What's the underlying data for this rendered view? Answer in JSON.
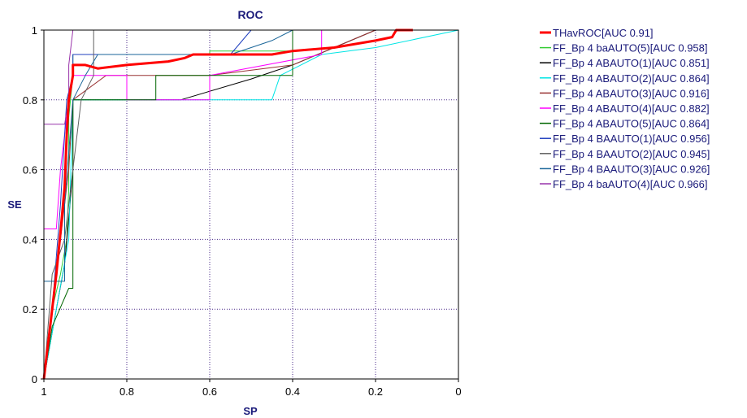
{
  "chart_data": {
    "type": "line",
    "title": "ROC",
    "xlabel": "SP",
    "ylabel": "SE",
    "xlim": [
      1,
      0
    ],
    "ylim": [
      0,
      1
    ],
    "x_reversed": true,
    "xticks": [
      "1",
      "0.8",
      "0.6",
      "0.4",
      "0.2",
      "0"
    ],
    "yticks": [
      "0",
      "0.2",
      "0.4",
      "0.6",
      "0.8",
      "1"
    ],
    "grid": true,
    "legend_position": "right",
    "series": [
      {
        "name": "THavROC[AUC 0.91]",
        "color": "#ff0000",
        "width": 3,
        "points": [
          [
            1,
            0
          ],
          [
            0.99,
            0.1
          ],
          [
            0.98,
            0.2
          ],
          [
            0.97,
            0.3
          ],
          [
            0.96,
            0.42
          ],
          [
            0.95,
            0.55
          ],
          [
            0.945,
            0.7
          ],
          [
            0.94,
            0.8
          ],
          [
            0.93,
            0.87
          ],
          [
            0.93,
            0.9
          ],
          [
            0.9,
            0.9
          ],
          [
            0.87,
            0.89
          ],
          [
            0.8,
            0.9
          ],
          [
            0.7,
            0.91
          ],
          [
            0.66,
            0.92
          ],
          [
            0.64,
            0.93
          ],
          [
            0.45,
            0.93
          ],
          [
            0.4,
            0.94
          ],
          [
            0.3,
            0.95
          ],
          [
            0.2,
            0.97
          ],
          [
            0.16,
            0.98
          ],
          [
            0.15,
            1
          ],
          [
            0.11,
            1
          ]
        ]
      },
      {
        "name": "FF_Bp 4 baAUTO(5)[AUC 0.958]",
        "color": "#33cc33",
        "width": 1,
        "points": [
          [
            1,
            0
          ],
          [
            0.98,
            0.2
          ],
          [
            0.96,
            0.3
          ],
          [
            0.945,
            0.4
          ],
          [
            0.94,
            0.55
          ],
          [
            0.94,
            0.75
          ],
          [
            0.93,
            0.87
          ],
          [
            0.93,
            0.93
          ],
          [
            0.6,
            0.93
          ],
          [
            0.6,
            0.94
          ],
          [
            0.4,
            0.94
          ],
          [
            0.4,
            1
          ],
          [
            0.2,
            1
          ]
        ]
      },
      {
        "name": "FF_Bp 4 ABAUTO(1)[AUC 0.851]",
        "color": "#000000",
        "width": 1,
        "points": [
          [
            1,
            0
          ],
          [
            0.97,
            0.2
          ],
          [
            0.95,
            0.33
          ],
          [
            0.94,
            0.46
          ],
          [
            0.93,
            0.6
          ],
          [
            0.93,
            0.8
          ],
          [
            0.67,
            0.8
          ],
          [
            0.5,
            0.86
          ],
          [
            0.4,
            0.9
          ],
          [
            0.3,
            0.95
          ],
          [
            0.2,
            1
          ],
          [
            0,
            1
          ]
        ]
      },
      {
        "name": "FF_Bp 4 ABAUTO(2)[AUC 0.864]",
        "color": "#00e5e5",
        "width": 1,
        "points": [
          [
            1,
            0
          ],
          [
            0.97,
            0.2
          ],
          [
            0.94,
            0.4
          ],
          [
            0.93,
            0.8
          ],
          [
            0.45,
            0.8
          ],
          [
            0.43,
            0.87
          ],
          [
            0.33,
            0.93
          ],
          [
            0.2,
            0.95
          ],
          [
            0,
            1
          ]
        ]
      },
      {
        "name": "FF_Bp 4 ABAUTO(3)[AUC 0.916]",
        "color": "#993333",
        "width": 1,
        "points": [
          [
            1,
            0
          ],
          [
            0.98,
            0.2
          ],
          [
            0.96,
            0.4
          ],
          [
            0.94,
            0.6
          ],
          [
            0.93,
            0.8
          ],
          [
            0.85,
            0.87
          ],
          [
            0.6,
            0.87
          ],
          [
            0.4,
            0.9
          ],
          [
            0.3,
            0.95
          ],
          [
            0.2,
            1
          ],
          [
            0,
            1
          ]
        ]
      },
      {
        "name": "FF_Bp 4 ABAUTO(4)[AUC 0.882]",
        "color": "#ff00ff",
        "width": 1,
        "points": [
          [
            1,
            0
          ],
          [
            1,
            0.43
          ],
          [
            0.97,
            0.43
          ],
          [
            0.96,
            0.6
          ],
          [
            0.94,
            0.8
          ],
          [
            0.93,
            0.87
          ],
          [
            0.8,
            0.87
          ],
          [
            0.8,
            0.8
          ],
          [
            0.6,
            0.8
          ],
          [
            0.6,
            0.87
          ],
          [
            0.33,
            0.93
          ],
          [
            0.33,
            1
          ],
          [
            0.2,
            1
          ],
          [
            0,
            1
          ]
        ]
      },
      {
        "name": "FF_Bp 4 ABAUTO(5)[AUC 0.864]",
        "color": "#006600",
        "width": 1,
        "points": [
          [
            1,
            0
          ],
          [
            0.98,
            0.15
          ],
          [
            0.94,
            0.26
          ],
          [
            0.93,
            0.26
          ],
          [
            0.93,
            0.8
          ],
          [
            0.73,
            0.8
          ],
          [
            0.73,
            0.87
          ],
          [
            0.4,
            0.87
          ],
          [
            0.4,
            1
          ],
          [
            0,
            1
          ]
        ]
      },
      {
        "name": "FF_Bp 4 BAAUTO(1)[AUC 0.956]",
        "color": "#1f3fbf",
        "width": 1,
        "points": [
          [
            1,
            0
          ],
          [
            0.98,
            0.2
          ],
          [
            0.96,
            0.5
          ],
          [
            0.945,
            0.8
          ],
          [
            0.93,
            0.87
          ],
          [
            0.93,
            0.93
          ],
          [
            0.55,
            0.93
          ],
          [
            0.5,
            1
          ],
          [
            0.4,
            1
          ],
          [
            0,
            1
          ]
        ]
      },
      {
        "name": "FF_Bp 4 BAAUTO(2)[AUC 0.945]",
        "color": "#606060",
        "width": 1,
        "points": [
          [
            1,
            0
          ],
          [
            0.98,
            0.3
          ],
          [
            0.95,
            0.4
          ],
          [
            0.93,
            0.6
          ],
          [
            0.91,
            0.8
          ],
          [
            0.88,
            0.87
          ],
          [
            0.88,
            1
          ],
          [
            0.4,
            1
          ],
          [
            0,
            1
          ]
        ]
      },
      {
        "name": "FF_Bp 4 BAAUTO(3)[AUC 0.926]",
        "color": "#1a6699",
        "width": 1,
        "points": [
          [
            1,
            0
          ],
          [
            1,
            0.28
          ],
          [
            0.95,
            0.28
          ],
          [
            0.95,
            0.5
          ],
          [
            0.93,
            0.8
          ],
          [
            0.9,
            0.87
          ],
          [
            0.87,
            0.93
          ],
          [
            0.55,
            0.93
          ],
          [
            0.5,
            0.95
          ],
          [
            0.45,
            0.97
          ],
          [
            0.4,
            1
          ],
          [
            0,
            1
          ]
        ]
      },
      {
        "name": "FF_Bp 4 baAUTO(4)[AUC 0.966]",
        "color": "#9933aa",
        "width": 1,
        "points": [
          [
            1,
            0
          ],
          [
            1,
            0.73
          ],
          [
            0.95,
            0.73
          ],
          [
            0.94,
            0.8
          ],
          [
            0.94,
            0.9
          ],
          [
            0.93,
            1
          ],
          [
            0.9,
            1
          ],
          [
            0,
            1
          ]
        ]
      }
    ]
  }
}
